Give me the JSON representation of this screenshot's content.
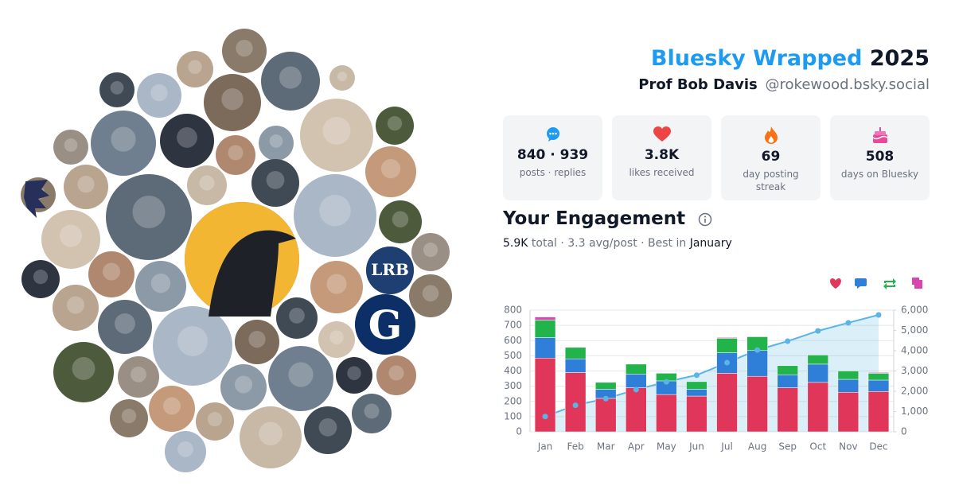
{
  "header": {
    "title": [
      "Bluesky Wrapped",
      "2025"
    ],
    "name": "Prof Bob Davis",
    "handle": "@rokewood.bsky.social"
  },
  "stats": [
    {
      "value": "840 · 939",
      "label": "posts · replies"
    },
    {
      "value": "3.8K",
      "label": "likes received"
    },
    {
      "value": "69",
      "label": "day posting streak"
    },
    {
      "value": "508",
      "label": "days on Bluesky"
    }
  ],
  "engagement": {
    "title": "Your Engagement",
    "summary": [
      "5.9K",
      "total · 3.3 avg/post · Best in",
      "January"
    ]
  },
  "collage": {
    "labels": [
      "LRB",
      "G"
    ]
  },
  "chart_data": {
    "type": "bar",
    "stacked": true,
    "grid": true,
    "categories": [
      "Jan",
      "Feb",
      "Mar",
      "Apr",
      "May",
      "Jun",
      "Jul",
      "Aug",
      "Sep",
      "Oct",
      "Nov",
      "Dec"
    ],
    "series": [
      {
        "color": "#e0365a",
        "values": [
          485,
          390,
          220,
          290,
          245,
          235,
          385,
          365,
          290,
          325,
          260,
          265
        ]
      },
      {
        "color": "#2f7fd8",
        "values": [
          135,
          90,
          60,
          90,
          90,
          45,
          135,
          170,
          85,
          120,
          85,
          75
        ]
      },
      {
        "color": "#22b34a",
        "values": [
          115,
          75,
          45,
          65,
          50,
          50,
          95,
          90,
          60,
          60,
          55,
          45
        ]
      },
      {
        "color": "#d946b0",
        "values": [
          20,
          0,
          0,
          0,
          0,
          0,
          5,
          0,
          0,
          0,
          0,
          5
        ]
      },
      {
        "type": "line",
        "axis": "y2",
        "color": "#5ab4e5",
        "values": [
          755,
          1310,
          1635,
          2080,
          2465,
          2795,
          3410,
          4035,
          4470,
          4975,
          5375,
          5765
        ]
      }
    ],
    "ylim": [
      0,
      800
    ],
    "yticks": [
      0,
      100,
      200,
      300,
      400,
      500,
      600,
      700,
      800
    ],
    "y2lim": [
      0,
      6000
    ],
    "y2ticks": [
      0,
      {
        "value": 1000,
        "label": "1,000"
      },
      {
        "value": 2000,
        "label": "2,000"
      },
      {
        "value": 3000,
        "label": "3,000"
      },
      {
        "value": 4000,
        "label": "4,000"
      },
      {
        "value": 5000,
        "label": "5,000"
      },
      {
        "value": 6000,
        "label": "6,000"
      }
    ]
  }
}
